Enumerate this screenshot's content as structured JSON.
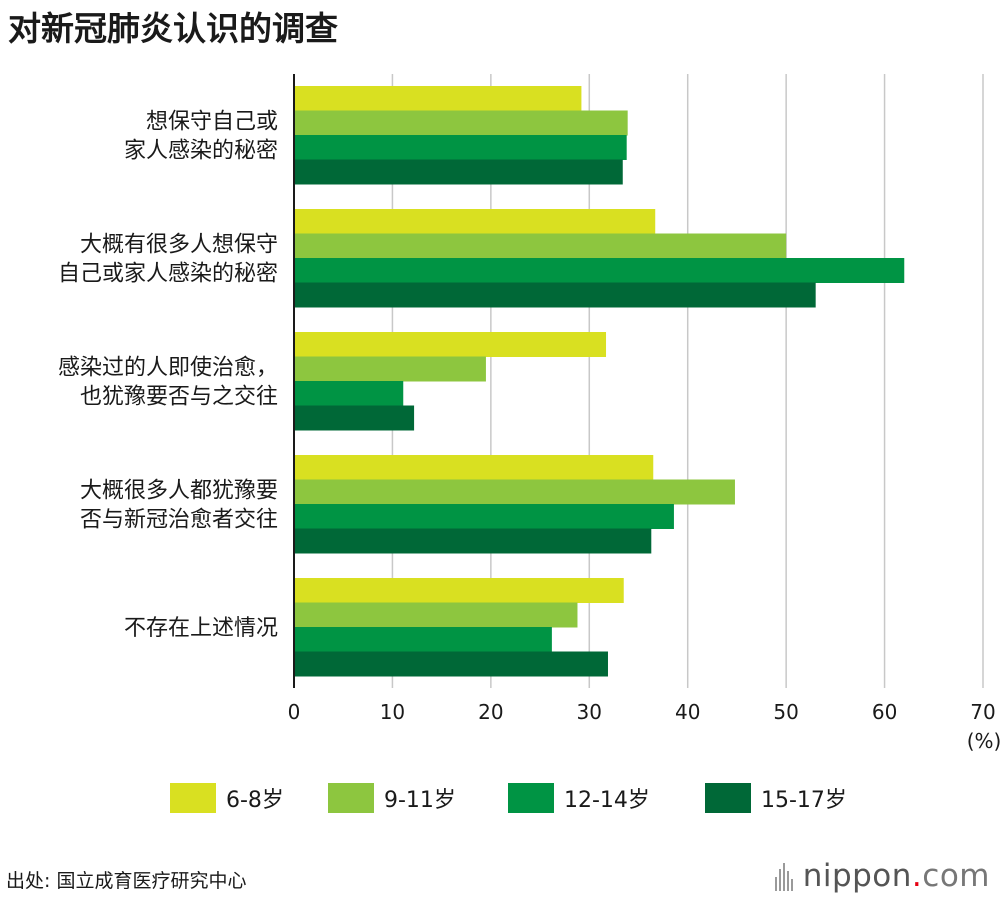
{
  "title": "对新冠肺炎认识的调查",
  "chart_data": {
    "type": "bar",
    "orientation": "horizontal",
    "title": "对新冠肺炎认识的调查",
    "categories": [
      [
        "想保守自己或",
        "家人感染的秘密"
      ],
      [
        "大概有很多人想保守",
        "自己或家人感染的秘密"
      ],
      [
        "感染过的人即使治愈，",
        "也犹豫要否与之交往"
      ],
      [
        "大概很多人都犹豫要",
        "否与新冠治愈者交往"
      ],
      [
        "不存在上述情况"
      ]
    ],
    "series": [
      {
        "name": "6-8岁",
        "color": "#d9e021",
        "values": [
          29.2,
          36.7,
          31.7,
          36.5,
          33.5
        ]
      },
      {
        "name": "9-11岁",
        "color": "#8dc63f",
        "values": [
          33.9,
          50.0,
          19.5,
          44.8,
          28.8
        ]
      },
      {
        "name": "12-14岁",
        "color": "#009444",
        "values": [
          33.8,
          62.0,
          11.1,
          38.6,
          26.2
        ]
      },
      {
        "name": "15-17岁",
        "color": "#006837",
        "values": [
          33.4,
          53.0,
          12.2,
          36.3,
          31.9
        ]
      }
    ],
    "xlim": [
      0,
      70
    ],
    "xticks": [
      0,
      10,
      20,
      30,
      40,
      50,
      60,
      70
    ],
    "xlabel": "(%)",
    "grid": true,
    "legend_position": "bottom"
  },
  "source": "出处: 国立成育医疗研究中心",
  "brand": {
    "name": "nippon",
    "dot": ".",
    "tld": "com"
  }
}
